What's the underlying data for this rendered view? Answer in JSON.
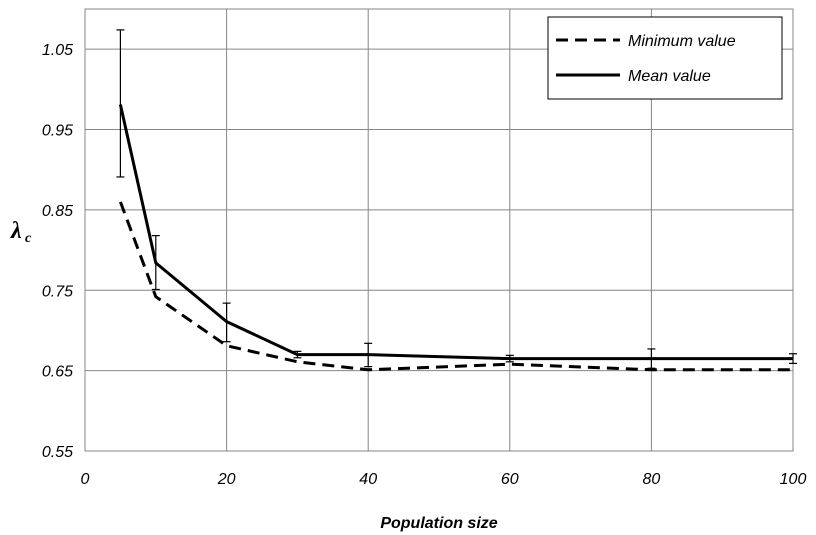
{
  "chart_data": {
    "type": "line",
    "title": "",
    "xlabel": "Population size",
    "ylabel": {
      "main": "λ",
      "sub": "c"
    },
    "xlim": [
      0,
      100
    ],
    "ylim": [
      0.55,
      1.1
    ],
    "xticks": [
      0,
      20,
      40,
      60,
      80,
      100
    ],
    "xtick_labels": [
      "0",
      "20",
      "40",
      "60",
      "80",
      "100"
    ],
    "yticks": [
      0.55,
      0.65,
      0.75,
      0.85,
      0.95,
      1.05
    ],
    "ytick_labels": [
      "0.55",
      "0.65",
      "0.75",
      "0.85",
      "0.95",
      "1.05"
    ],
    "grid": true,
    "legend_position": "top-right",
    "series": [
      {
        "name": "Minimum value",
        "style": "dashed",
        "color": "#000000",
        "x": [
          5,
          10,
          20,
          30,
          40,
          60,
          80,
          100
        ],
        "y": [
          0.86,
          0.742,
          0.681,
          0.661,
          0.651,
          0.658,
          0.651,
          0.651
        ]
      },
      {
        "name": "Mean value",
        "style": "solid",
        "color": "#000000",
        "x": [
          5,
          10,
          20,
          30,
          40,
          60,
          80,
          100
        ],
        "y": [
          0.981,
          0.784,
          0.711,
          0.67,
          0.67,
          0.665,
          0.665,
          0.665
        ],
        "error_low": [
          0.891,
          0.751,
          0.686,
          0.666,
          0.655,
          0.661,
          0.653,
          0.659
        ],
        "error_high": [
          1.074,
          0.818,
          0.734,
          0.674,
          0.684,
          0.669,
          0.677,
          0.671
        ]
      }
    ]
  }
}
